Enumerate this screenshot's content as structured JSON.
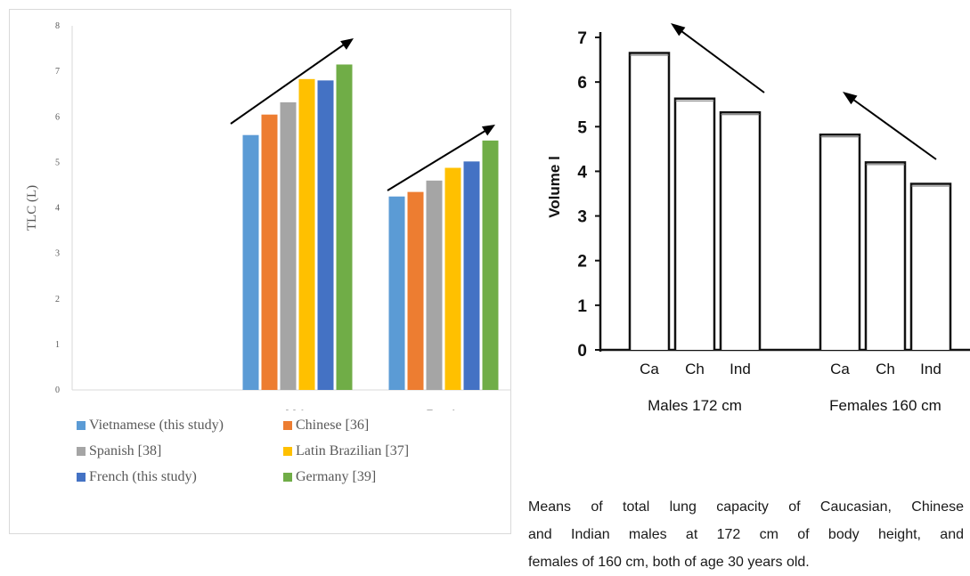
{
  "chart_data": [
    {
      "type": "bar",
      "ylabel": "TLC (L)",
      "ylim": [
        0,
        8
      ],
      "yticks": [
        0,
        1,
        2,
        3,
        4,
        5,
        6,
        7,
        8
      ],
      "categories": [
        "",
        "Male",
        "Female"
      ],
      "series": [
        {
          "name": "Vietnamese (this study)",
          "color": "#5B9BD5",
          "values": [
            null,
            5.6,
            4.25
          ]
        },
        {
          "name": "Chinese [36]",
          "color": "#ED7D31",
          "values": [
            null,
            6.05,
            4.35
          ]
        },
        {
          "name": "Spanish [38]",
          "color": "#A5A5A5",
          "values": [
            null,
            6.32,
            4.6
          ]
        },
        {
          "name": "Latin Brazilian [37]",
          "color": "#FFC000",
          "values": [
            null,
            6.83,
            4.88
          ]
        },
        {
          "name": "French (this study)",
          "color": "#4472C4",
          "values": [
            null,
            6.8,
            5.02
          ]
        },
        {
          "name": "Germany [39]",
          "color": "#70AD47",
          "values": [
            null,
            7.15,
            5.48
          ]
        }
      ],
      "annotations": [
        "rising-arrow",
        "rising-arrow"
      ],
      "grid": false,
      "legend": "bottom"
    },
    {
      "type": "bar",
      "ylabel": "Volume l",
      "ylim": [
        0,
        7
      ],
      "yticks": [
        0,
        1,
        2,
        3,
        4,
        5,
        6,
        7
      ],
      "groups": [
        {
          "label": "Males",
          "sublabel": "172 cm",
          "categories": [
            "Ca",
            "Ch",
            "Ind"
          ],
          "values": [
            6.65,
            5.63,
            5.32
          ]
        },
        {
          "label": "Females",
          "sublabel": "160 cm",
          "categories": [
            "Ca",
            "Ch",
            "Ind"
          ],
          "values": [
            4.82,
            4.2,
            3.72
          ]
        }
      ],
      "annotations": [
        "rising-arrow",
        "rising-arrow"
      ],
      "grid": false
    }
  ],
  "caption": [
    "Means of total lung capacity of Caucasian, Chinese",
    "and Indian males at 172 cm of body height, and",
    "females of 160 cm, both of age 30 years old."
  ]
}
